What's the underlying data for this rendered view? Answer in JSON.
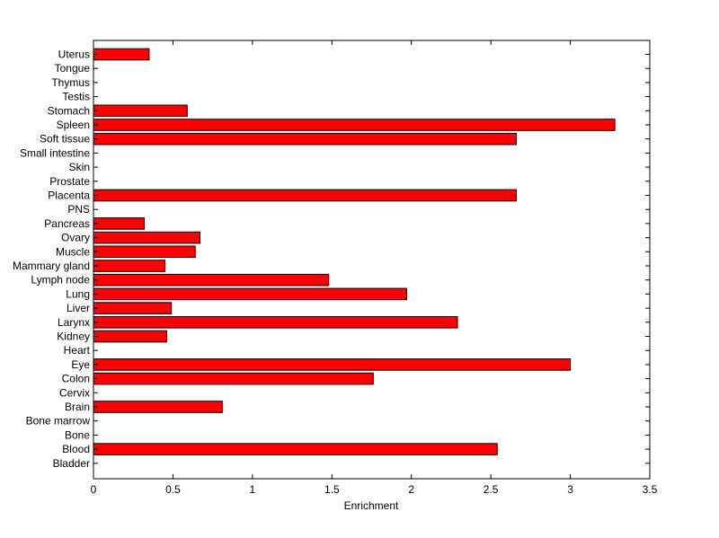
{
  "chart_data": {
    "type": "bar",
    "orientation": "horizontal",
    "title": "",
    "xlabel": "Enrichment",
    "ylabel": "",
    "xlim": [
      0,
      3.5
    ],
    "xticks": [
      0,
      0.5,
      1,
      1.5,
      2,
      2.5,
      3,
      3.5
    ],
    "xtick_labels": [
      "0",
      "0.5",
      "1",
      "1.5",
      "2",
      "2.5",
      "3",
      "3.5"
    ],
    "grid": false,
    "bar_color": "#ff0000",
    "categories": [
      "Uterus",
      "Tongue",
      "Thymus",
      "Testis",
      "Stomach",
      "Spleen",
      "Soft tissue",
      "Small intestine",
      "Skin",
      "Prostate",
      "Placenta",
      "PNS",
      "Pancreas",
      "Ovary",
      "Muscle",
      "Mammary gland",
      "Lymph node",
      "Lung",
      "Liver",
      "Larynx",
      "Kidney",
      "Heart",
      "Eye",
      "Colon",
      "Cervix",
      "Brain",
      "Bone marrow",
      "Bone",
      "Blood",
      "Bladder"
    ],
    "values": [
      0.35,
      0,
      0,
      0,
      0.59,
      3.28,
      2.66,
      0,
      0,
      0,
      2.66,
      0,
      0.32,
      0.67,
      0.64,
      0.45,
      1.48,
      1.97,
      0.49,
      2.29,
      0.46,
      0,
      3.0,
      1.76,
      0,
      0.81,
      0,
      0,
      2.54,
      0
    ]
  }
}
